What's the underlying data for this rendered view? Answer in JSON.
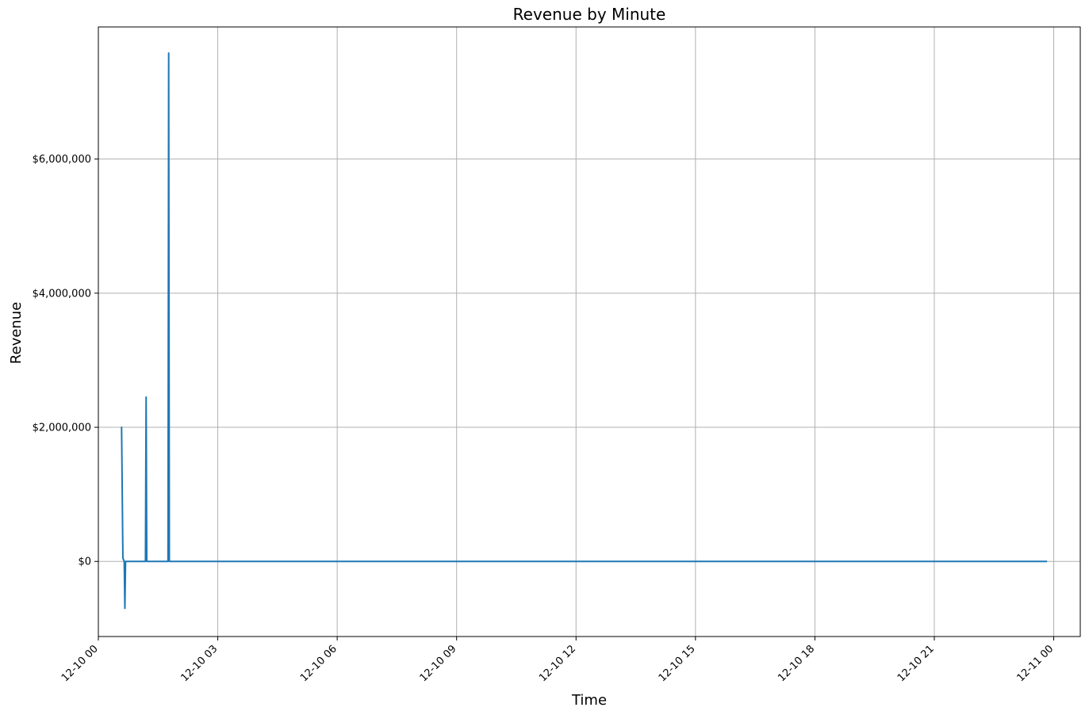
{
  "chart_data": {
    "type": "line",
    "title": "Revenue by Minute",
    "xlabel": "Time",
    "ylabel": "Revenue",
    "x_axis": {
      "kind": "time",
      "range": [
        "12-10 00:00",
        "12-11 00:40"
      ],
      "ticks": [
        "12-10 00",
        "12-10 03",
        "12-10 06",
        "12-10 09",
        "12-10 12",
        "12-10 15",
        "12-10 18",
        "12-10 21",
        "12-11 00"
      ]
    },
    "y_axis": {
      "range": [
        -1120000,
        7970000
      ],
      "ticks": [
        0,
        2000000,
        4000000,
        6000000
      ],
      "tick_labels": [
        "$0",
        "$2,000,000",
        "$4,000,000",
        "$6,000,000"
      ]
    },
    "grid": true,
    "color": "#1f77b4",
    "series": [
      {
        "points": [
          {
            "x": "12-10 00:35",
            "y": 2010000
          },
          {
            "x": "12-10 00:37",
            "y": 50000
          },
          {
            "x": "12-10 00:39",
            "y": 0
          },
          {
            "x": "12-10 00:40",
            "y": -700000
          },
          {
            "x": "12-10 00:41",
            "y": 0
          },
          {
            "x": "12-10 01:11",
            "y": 0
          },
          {
            "x": "12-10 01:12",
            "y": 2450000
          },
          {
            "x": "12-10 01:13",
            "y": 0
          },
          {
            "x": "12-10 01:45",
            "y": 0
          },
          {
            "x": "12-10 01:46",
            "y": 7580000
          },
          {
            "x": "12-10 01:47",
            "y": 0
          },
          {
            "x": "12-10 23:50",
            "y": 0
          }
        ]
      }
    ]
  }
}
